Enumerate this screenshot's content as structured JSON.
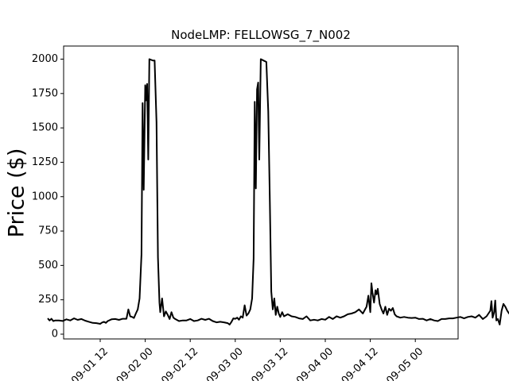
{
  "chart_data": {
    "type": "line",
    "title": "NodeLMP: FELLOWSG_7_N002",
    "xlabel": "",
    "ylabel": "Price ($)",
    "ylim": [
      -50,
      2090
    ],
    "xlim_hours": [
      -21,
      105
    ],
    "grid": false,
    "color": "#000000",
    "yticks": [
      0,
      250,
      500,
      750,
      1000,
      1250,
      1500,
      1750,
      2000
    ],
    "xticks": [
      {
        "hour": 12,
        "label": "09-01 12"
      },
      {
        "hour": 24,
        "label": "09-02 00"
      },
      {
        "hour": 36,
        "label": "09-02 12"
      },
      {
        "hour": 48,
        "label": "09-03 00"
      },
      {
        "hour": 60,
        "label": "09-03 12"
      },
      {
        "hour": 72,
        "label": "09-04 00"
      },
      {
        "hour": 84,
        "label": "09-04 12"
      },
      {
        "hour": 96,
        "label": "09-05 00"
      }
    ],
    "x_units": "hours from 09-01 00",
    "series": [
      {
        "name": "",
        "points": [
          [
            -2,
            115
          ],
          [
            -1.5,
            100
          ],
          [
            -1,
            112
          ],
          [
            -0.5,
            95
          ],
          [
            0,
            100
          ],
          [
            1,
            100
          ],
          [
            2,
            96
          ],
          [
            3,
            108
          ],
          [
            4,
            100
          ],
          [
            5,
            115
          ],
          [
            6,
            104
          ],
          [
            7,
            110
          ],
          [
            8,
            98
          ],
          [
            9,
            90
          ],
          [
            10,
            82
          ],
          [
            11,
            80
          ],
          [
            12,
            75
          ],
          [
            12.5,
            85
          ],
          [
            13,
            90
          ],
          [
            13.5,
            82
          ],
          [
            14,
            95
          ],
          [
            15,
            108
          ],
          [
            16,
            110
          ],
          [
            17,
            104
          ],
          [
            18,
            112
          ],
          [
            19,
            112
          ],
          [
            19.5,
            180
          ],
          [
            20,
            130
          ],
          [
            20.5,
            125
          ],
          [
            21,
            118
          ],
          [
            21.5,
            150
          ],
          [
            22,
            180
          ],
          [
            22.5,
            260
          ],
          [
            23,
            580
          ],
          [
            23.3,
            1680
          ],
          [
            23.6,
            1050
          ],
          [
            24,
            1810
          ],
          [
            24.2,
            1700
          ],
          [
            24.5,
            1820
          ],
          [
            24.8,
            1270
          ],
          [
            25.1,
            2000
          ],
          [
            26,
            1990
          ],
          [
            26.5,
            1990
          ],
          [
            27,
            1540
          ],
          [
            27.4,
            560
          ],
          [
            27.8,
            230
          ],
          [
            28,
            160
          ],
          [
            28.5,
            260
          ],
          [
            29,
            130
          ],
          [
            29.5,
            165
          ],
          [
            30,
            140
          ],
          [
            30.5,
            110
          ],
          [
            31,
            160
          ],
          [
            31.5,
            120
          ],
          [
            32,
            110
          ],
          [
            33,
            95
          ],
          [
            34,
            100
          ],
          [
            35,
            100
          ],
          [
            36,
            110
          ],
          [
            37,
            95
          ],
          [
            38,
            100
          ],
          [
            39,
            112
          ],
          [
            40,
            104
          ],
          [
            41,
            112
          ],
          [
            42,
            95
          ],
          [
            43,
            86
          ],
          [
            44,
            90
          ],
          [
            45,
            86
          ],
          [
            46,
            80
          ],
          [
            46.5,
            70
          ],
          [
            47,
            90
          ],
          [
            47.5,
            115
          ],
          [
            48,
            112
          ],
          [
            48.5,
            120
          ],
          [
            49,
            105
          ],
          [
            49.5,
            130
          ],
          [
            50,
            120
          ],
          [
            50.5,
            210
          ],
          [
            51,
            135
          ],
          [
            51.5,
            150
          ],
          [
            52,
            180
          ],
          [
            52.5,
            260
          ],
          [
            52.9,
            550
          ],
          [
            53.2,
            1690
          ],
          [
            53.5,
            1060
          ],
          [
            53.8,
            1780
          ],
          [
            54.1,
            1830
          ],
          [
            54.4,
            1270
          ],
          [
            54.8,
            2000
          ],
          [
            55.5,
            1990
          ],
          [
            56.3,
            1980
          ],
          [
            56.8,
            1620
          ],
          [
            57.2,
            1000
          ],
          [
            57.6,
            310
          ],
          [
            58,
            180
          ],
          [
            58.4,
            260
          ],
          [
            58.8,
            140
          ],
          [
            59.2,
            200
          ],
          [
            59.6,
            150
          ],
          [
            60,
            125
          ],
          [
            60.5,
            160
          ],
          [
            61,
            130
          ],
          [
            62,
            145
          ],
          [
            63,
            130
          ],
          [
            64,
            125
          ],
          [
            65,
            115
          ],
          [
            66,
            110
          ],
          [
            67,
            130
          ],
          [
            68,
            100
          ],
          [
            69,
            105
          ],
          [
            70,
            100
          ],
          [
            71,
            110
          ],
          [
            72,
            105
          ],
          [
            73,
            125
          ],
          [
            74,
            110
          ],
          [
            75,
            130
          ],
          [
            76,
            120
          ],
          [
            77,
            130
          ],
          [
            78,
            145
          ],
          [
            79,
            150
          ],
          [
            80,
            160
          ],
          [
            81,
            180
          ],
          [
            82,
            150
          ],
          [
            83,
            200
          ],
          [
            83.5,
            280
          ],
          [
            84,
            160
          ],
          [
            84.3,
            370
          ],
          [
            84.6,
            300
          ],
          [
            85,
            230
          ],
          [
            85.4,
            320
          ],
          [
            85.7,
            290
          ],
          [
            86,
            330
          ],
          [
            86.5,
            220
          ],
          [
            87,
            180
          ],
          [
            87.5,
            150
          ],
          [
            88,
            200
          ],
          [
            88.5,
            140
          ],
          [
            89,
            185
          ],
          [
            89.5,
            170
          ],
          [
            90,
            190
          ],
          [
            90.5,
            145
          ],
          [
            91,
            130
          ],
          [
            92,
            120
          ],
          [
            93,
            125
          ],
          [
            94,
            120
          ],
          [
            95,
            118
          ],
          [
            96,
            120
          ],
          [
            97,
            110
          ],
          [
            98,
            112
          ],
          [
            99,
            100
          ],
          [
            100,
            110
          ],
          [
            101,
            100
          ],
          [
            102,
            95
          ],
          [
            103,
            110
          ],
          [
            104,
            110
          ],
          [
            105,
            115
          ],
          [
            106,
            115
          ],
          [
            107,
            120
          ],
          [
            108,
            125
          ],
          [
            109,
            115
          ],
          [
            110,
            125
          ],
          [
            111,
            130
          ],
          [
            112,
            120
          ],
          [
            113,
            140
          ],
          [
            114,
            110
          ],
          [
            115,
            130
          ],
          [
            116,
            170
          ],
          [
            116.3,
            240
          ],
          [
            116.6,
            120
          ],
          [
            117,
            160
          ],
          [
            117.3,
            245
          ],
          [
            117.6,
            100
          ],
          [
            118,
            110
          ],
          [
            118.5,
            70
          ],
          [
            119,
            170
          ],
          [
            119.5,
            220
          ],
          [
            120,
            200
          ],
          [
            120.5,
            170
          ],
          [
            121,
            150
          ],
          [
            122,
            155
          ],
          [
            123,
            150
          ],
          [
            123.5,
            120
          ],
          [
            124,
            100
          ],
          [
            125,
            85
          ],
          [
            126,
            90
          ]
        ]
      }
    ]
  }
}
